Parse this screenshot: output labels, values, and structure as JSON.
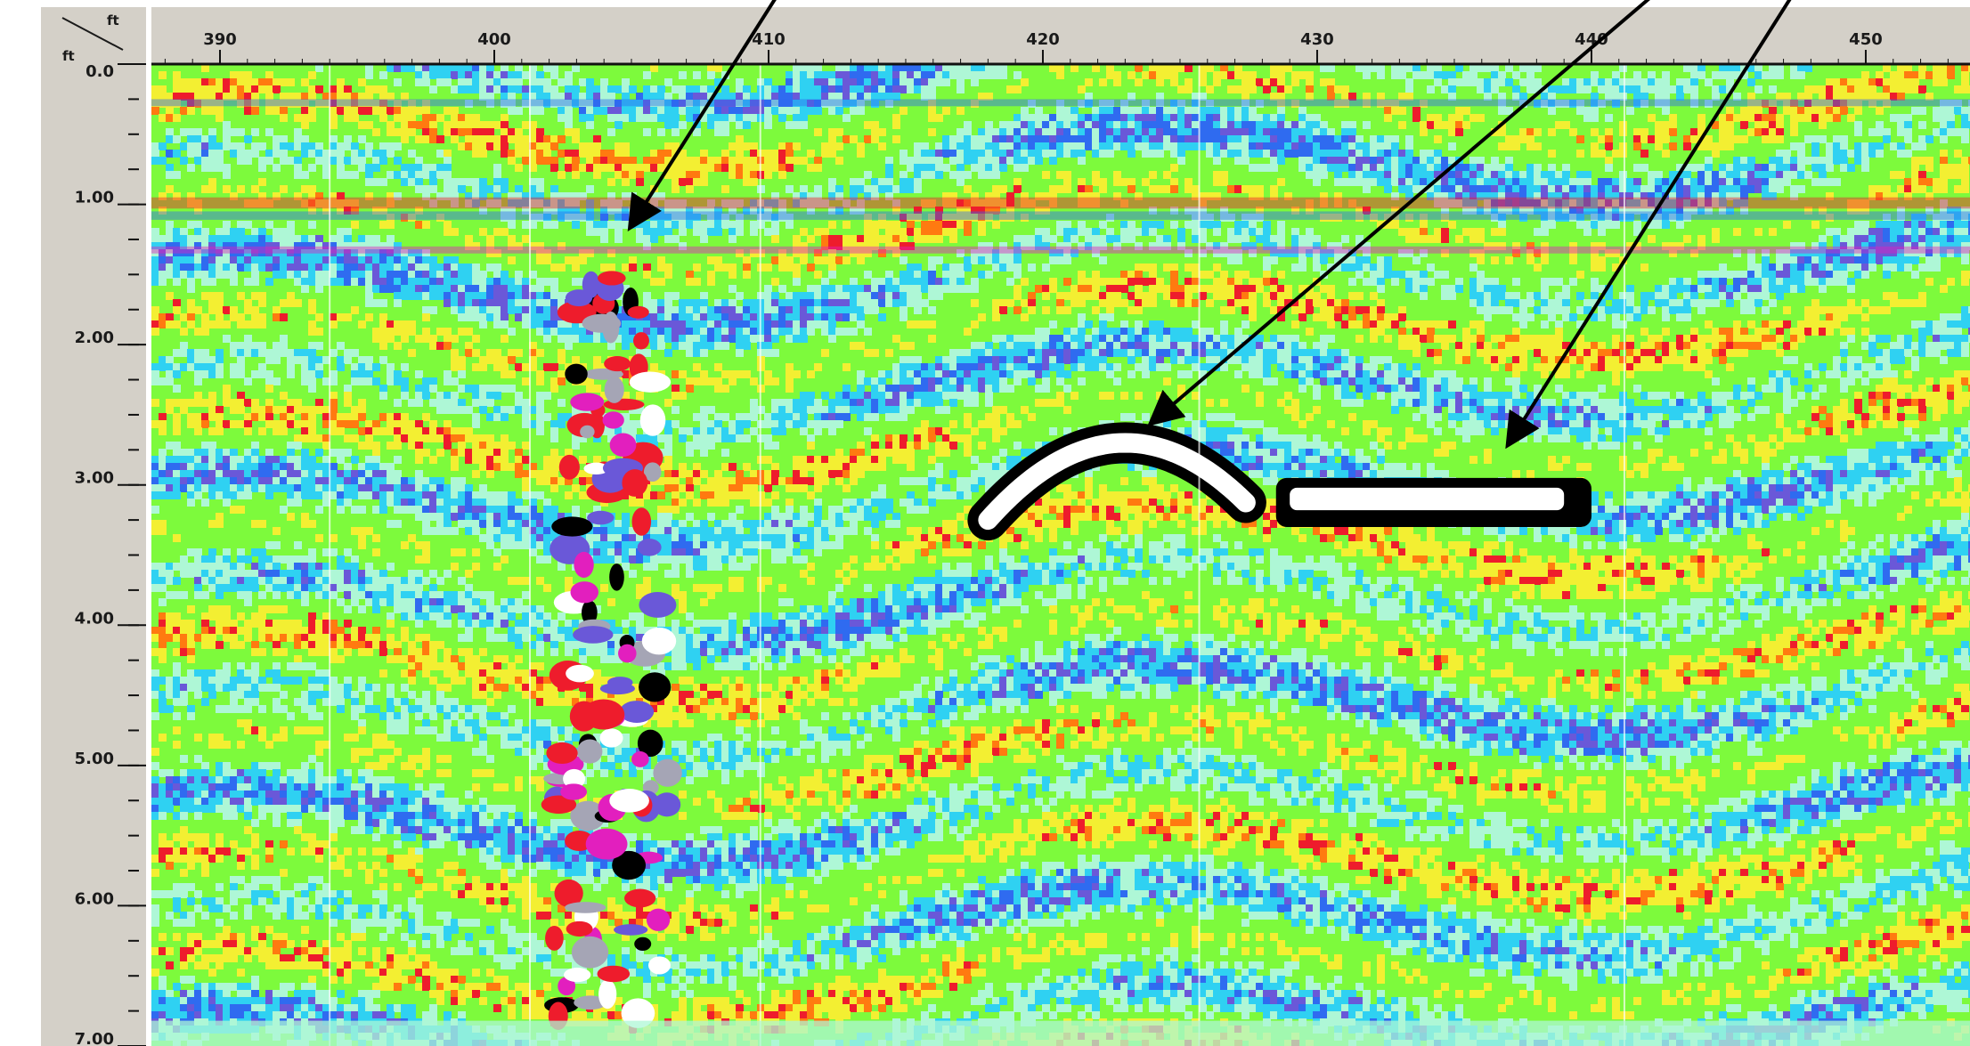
{
  "viewer": {
    "corner": {
      "x_unit": "ft",
      "y_unit": "ft"
    },
    "x_axis": {
      "range": [
        387.5,
        453.8
      ],
      "ticks": [
        {
          "value": 390,
          "label": "390"
        },
        {
          "value": 400,
          "label": "400"
        },
        {
          "value": 410,
          "label": "410"
        },
        {
          "value": 420,
          "label": "420"
        },
        {
          "value": 430,
          "label": "430"
        },
        {
          "value": 440,
          "label": "440"
        },
        {
          "value": 450,
          "label": "450"
        }
      ]
    },
    "y_axis": {
      "range": [
        0.0,
        7.0
      ],
      "minor_step": 0.25,
      "ticks": [
        {
          "value": 0.0,
          "label": "0.0"
        },
        {
          "value": 1.0,
          "label": "1.00"
        },
        {
          "value": 2.0,
          "label": "2.00"
        },
        {
          "value": 3.0,
          "label": "3.00"
        },
        {
          "value": 4.0,
          "label": "4.00"
        },
        {
          "value": 5.0,
          "label": "5.00"
        },
        {
          "value": 6.0,
          "label": "6.00"
        },
        {
          "value": 7.0,
          "label": "7.00"
        }
      ]
    },
    "palette": {
      "background": "#7dfa3c",
      "light": "#aef7d6",
      "cyan": "#2fd1f2",
      "blue": "#2f6bf0",
      "violet": "#6a58d8",
      "yellow": "#f3ef32",
      "orange": "#ff7a10",
      "red": "#ee1c2c",
      "magenta": "#e21fbe",
      "gray": "#a5a5b5",
      "white": "#ffffff",
      "black": "#000000",
      "axis_panel": "#d4d0c8"
    },
    "annotations": [
      {
        "from": [
          411.0,
          -0.7
        ],
        "to": [
          405.0,
          1.15
        ]
      },
      {
        "from": [
          443.5,
          -0.7
        ],
        "to": [
          424.0,
          2.55
        ]
      },
      {
        "from": [
          448.0,
          -0.7
        ],
        "to": [
          437.0,
          2.7
        ]
      }
    ]
  }
}
